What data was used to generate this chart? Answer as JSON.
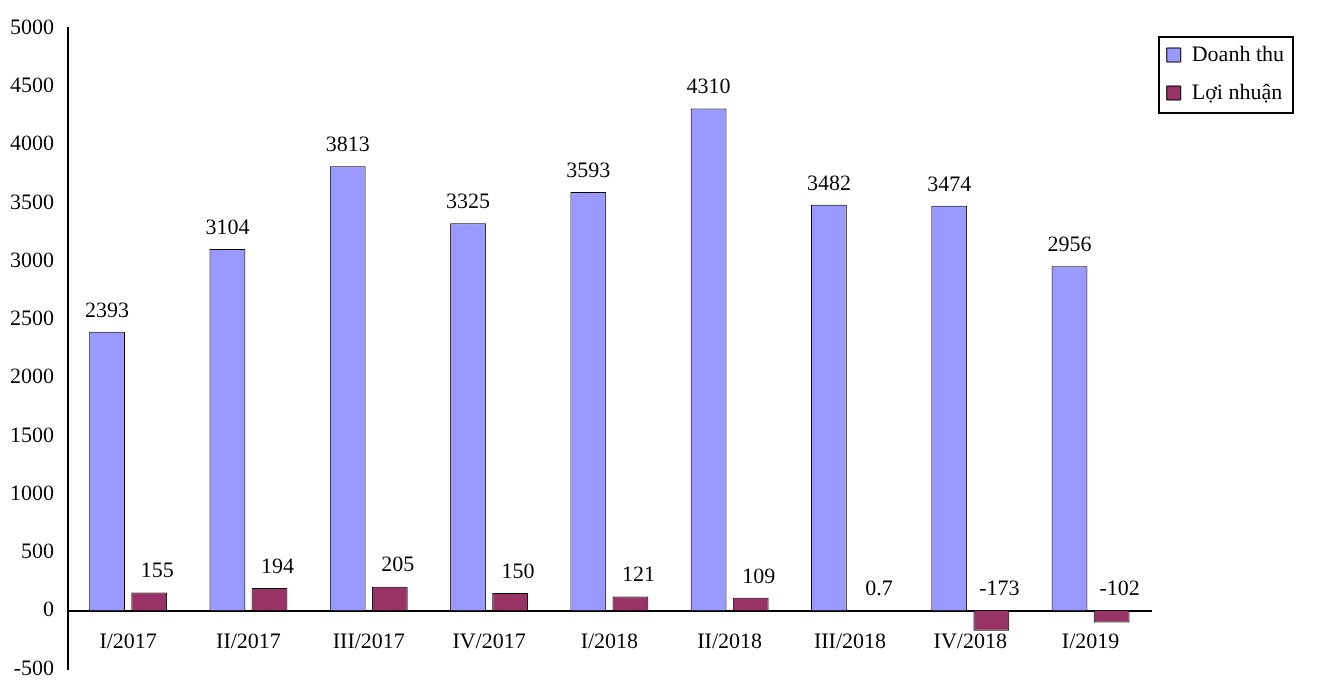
{
  "chart_data": {
    "type": "bar",
    "categories": [
      "I/2017",
      "II/2017",
      "III/2017",
      "IV/2017",
      "I/2018",
      "II/2018",
      "III/2018",
      "IV/2018",
      "I/2019"
    ],
    "series": [
      {
        "name": "Doanh thu",
        "color": "#9999ff",
        "values": [
          2393,
          3104,
          3813,
          3325,
          3593,
          4310,
          3482,
          3474,
          2956
        ]
      },
      {
        "name": "Lợi nhuận",
        "color": "#993366",
        "values": [
          155,
          194,
          205,
          150,
          121,
          109,
          0.7,
          -173,
          -102
        ]
      }
    ],
    "ylim": [
      -500,
      5000
    ],
    "yticks": [
      -500,
      0,
      500,
      1000,
      1500,
      2000,
      2500,
      3000,
      3500,
      4000,
      4500,
      5000
    ],
    "grid": false,
    "legend": "top right",
    "data_labels": true
  }
}
